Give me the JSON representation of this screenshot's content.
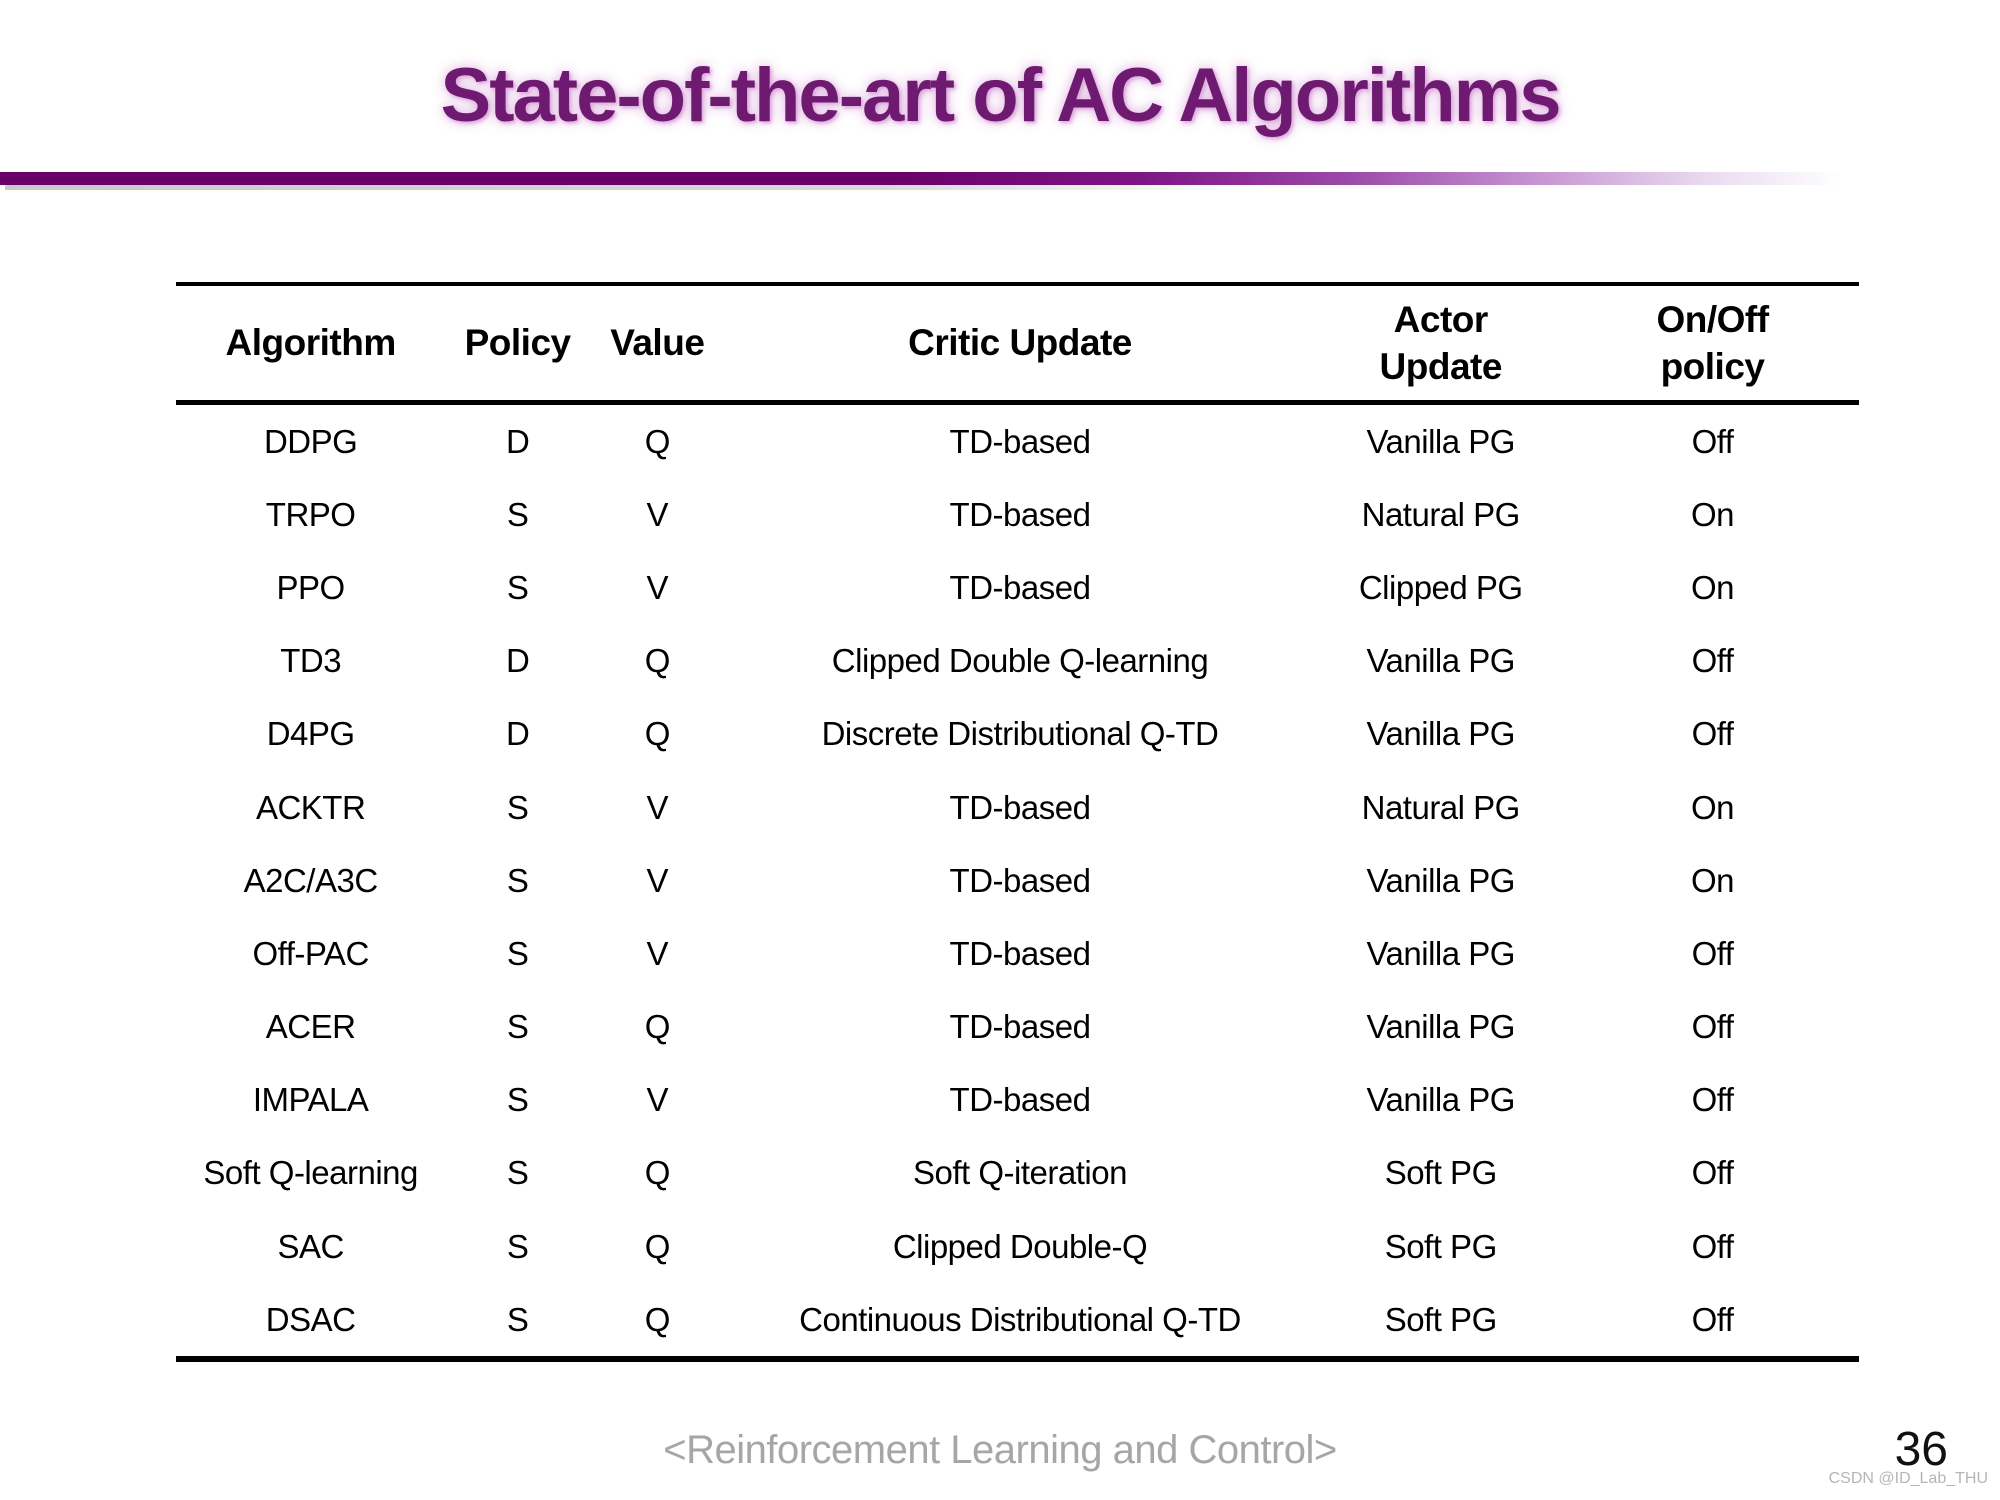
{
  "slide": {
    "title": "State-of-the-art of AC Algorithms"
  },
  "table": {
    "headers": [
      {
        "line1": "Algorithm"
      },
      {
        "line1": "Policy"
      },
      {
        "line1": "Value"
      },
      {
        "line1": "Critic Update"
      },
      {
        "line1": "Actor",
        "line2": "Update"
      },
      {
        "line1": "On/Off",
        "line2": "policy"
      }
    ],
    "rows": [
      [
        "DDPG",
        "D",
        "Q",
        "TD-based",
        "Vanilla PG",
        "Off"
      ],
      [
        "TRPO",
        "S",
        "V",
        "TD-based",
        "Natural PG",
        "On"
      ],
      [
        "PPO",
        "S",
        "V",
        "TD-based",
        "Clipped PG",
        "On"
      ],
      [
        "TD3",
        "D",
        "Q",
        "Clipped Double Q-learning",
        "Vanilla PG",
        "Off"
      ],
      [
        "D4PG",
        "D",
        "Q",
        "Discrete Distributional Q-TD",
        "Vanilla PG",
        "Off"
      ],
      [
        "ACKTR",
        "S",
        "V",
        "TD-based",
        "Natural PG",
        "On"
      ],
      [
        "A2C/A3C",
        "S",
        "V",
        "TD-based",
        "Vanilla PG",
        "On"
      ],
      [
        "Off-PAC",
        "S",
        "V",
        "TD-based",
        "Vanilla PG",
        "Off"
      ],
      [
        "ACER",
        "S",
        "Q",
        "TD-based",
        "Vanilla PG",
        "Off"
      ],
      [
        "IMPALA",
        "S",
        "V",
        "TD-based",
        "Vanilla PG",
        "Off"
      ],
      [
        "Soft Q-learning",
        "S",
        "Q",
        "Soft Q-iteration",
        "Soft PG",
        "Off"
      ],
      [
        "SAC",
        "S",
        "Q",
        "Clipped Double-Q",
        "Soft PG",
        "Off"
      ],
      [
        "DSAC",
        "S",
        "Q",
        "Continuous Distributional Q-TD",
        "Soft PG",
        "Off"
      ]
    ]
  },
  "footer": {
    "caption": "<Reinforcement Learning and Control>",
    "page_number": "36",
    "watermark": "CSDN @ID_Lab_THU"
  },
  "colors": {
    "title_purple": "#6e1a71",
    "bar_purple": "#690069",
    "table_line": "#000000",
    "footer_gray": "#a6a6a6",
    "watermark_gray": "#b6b6b6"
  }
}
